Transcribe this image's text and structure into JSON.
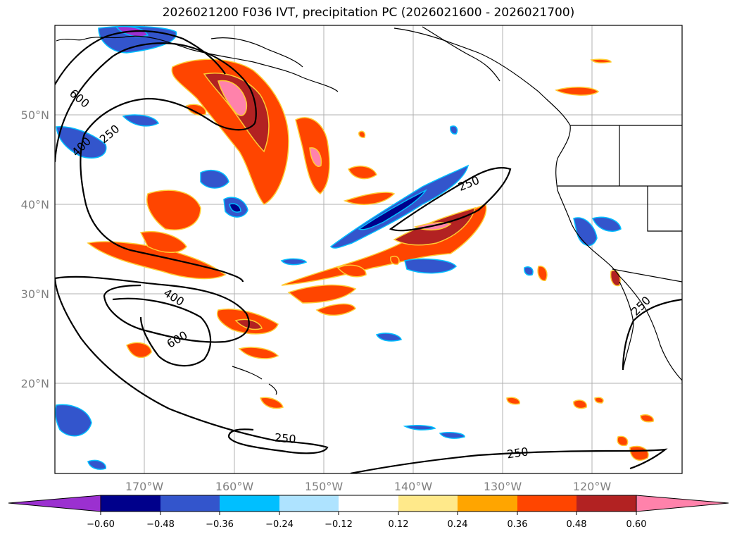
{
  "title": "2026021200 F036 IVT, precipitation PC (2026021600 - 2026021700)",
  "map": {
    "lon_range": [
      -180,
      -110
    ],
    "lat_range": [
      10,
      60
    ],
    "lat_ticks": [
      {
        "value": 50,
        "label": "50°N"
      },
      {
        "value": 40,
        "label": "40°N"
      },
      {
        "value": 30,
        "label": "30°N"
      },
      {
        "value": 20,
        "label": "20°N"
      }
    ],
    "lon_ticks": [
      {
        "value": -170,
        "label": "170°W"
      },
      {
        "value": -160,
        "label": "160°W"
      },
      {
        "value": -150,
        "label": "150°W"
      },
      {
        "value": -140,
        "label": "140°W"
      },
      {
        "value": -130,
        "label": "130°W"
      },
      {
        "value": -120,
        "label": "120°W"
      }
    ],
    "ivt_contour_labels": [
      "600",
      "400",
      "250",
      "250",
      "400",
      "600",
      "250",
      "250",
      "250"
    ]
  },
  "colorbar": {
    "colors": [
      "#9b30d0",
      "#00008b",
      "#3355cc",
      "#00bfff",
      "#aee3ff",
      "#ffffff",
      "#ffe98a",
      "#ffa500",
      "#ff4500",
      "#b22222",
      "#ff82ab"
    ],
    "tick_labels": [
      "−0.60",
      "−0.48",
      "−0.36",
      "−0.24",
      "−0.12",
      "0.12",
      "0.24",
      "0.36",
      "0.48",
      "0.60"
    ]
  }
}
